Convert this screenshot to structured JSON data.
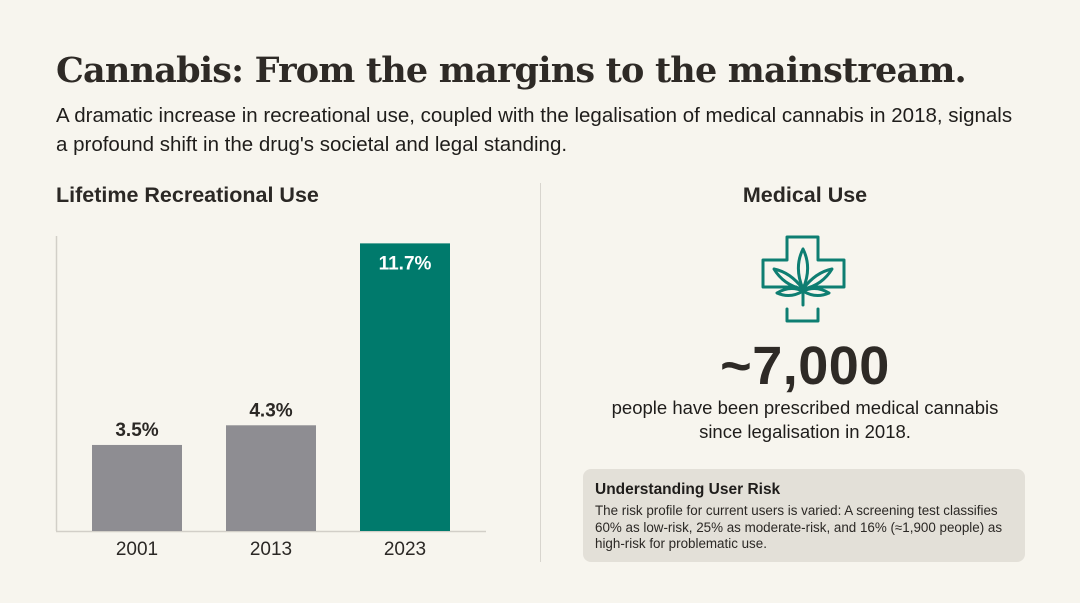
{
  "header": {
    "title": "Cannabis: From the margins to the mainstream.",
    "subtitle": "A dramatic increase in recreational use, coupled with the legalisation of medical cannabis in 2018, signals a profound shift in the drug's societal and legal standing."
  },
  "colors": {
    "background": "#F7F5EE",
    "accent": "#007A6C",
    "neutral_bar": "#8E8D92",
    "text": "#2B2825",
    "risk_box": "#E3E0D8"
  },
  "left_section": {
    "heading": "Lifetime Recreational Use"
  },
  "chart_data": {
    "type": "bar",
    "title": "Lifetime Recreational Use",
    "categories": [
      "2001",
      "2013",
      "2023"
    ],
    "values": [
      3.5,
      4.3,
      11.7
    ],
    "value_labels": [
      "3.5%",
      "4.3%",
      "11.7%"
    ],
    "highlight": [
      false,
      false,
      true
    ],
    "unit": "%",
    "xlabel": "",
    "ylabel": "",
    "ylim": [
      0,
      12
    ],
    "grid": false,
    "legend": "none"
  },
  "right_section": {
    "heading": "Medical Use",
    "icon": "medical-cross-cannabis-leaf-icon",
    "stat_value": "~7,000",
    "stat_description": "people have been prescribed medical cannabis since legalisation in 2018.",
    "risk_box": {
      "title": "Understanding User Risk",
      "body": "The risk profile for current users is varied: A screening test classifies 60% as low-risk, 25% as moderate-risk, and 16% (≈1,900 people) as high-risk for problematic use."
    }
  }
}
